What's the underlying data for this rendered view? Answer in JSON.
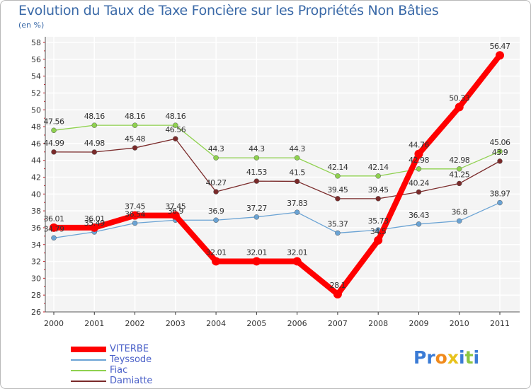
{
  "chart_data": {
    "type": "line",
    "title": "Evolution du Taux de Taxe Foncière sur les Propriétés Non Bâties",
    "subtitle": "(en %)",
    "xlabel": "",
    "ylabel": "",
    "categories": [
      "2000",
      "2001",
      "2002",
      "2003",
      "2004",
      "2005",
      "2006",
      "2007",
      "2008",
      "2009",
      "2010",
      "2011"
    ],
    "ylim": [
      26,
      58
    ],
    "yticks": [
      26,
      28,
      30,
      32,
      34,
      36,
      38,
      40,
      42,
      44,
      46,
      48,
      50,
      52,
      54,
      56,
      58
    ],
    "grid": true,
    "legend_position": "bottom-left",
    "series": [
      {
        "name": "VITERBE",
        "color": "#ff0000",
        "emphasis": true,
        "values": [
          36.01,
          36.01,
          37.45,
          37.45,
          32.01,
          32.01,
          32.01,
          28.1,
          34.5,
          44.76,
          50.33,
          56.47
        ],
        "labels": [
          "36.01",
          "36.01",
          "37.45",
          "37.45",
          "32.01",
          "32.01",
          "32.01",
          "28.1",
          "34.5",
          "44.76",
          "50.33",
          "56.47"
        ]
      },
      {
        "name": "Teyssode",
        "color": "#6aa3d4",
        "emphasis": false,
        "values": [
          34.79,
          35.49,
          36.54,
          36.9,
          36.9,
          37.27,
          37.83,
          35.37,
          35.73,
          36.43,
          36.8,
          38.97
        ],
        "labels": [
          "34.79",
          "35.49",
          "36.54",
          "36.9",
          "36.9",
          "37.27",
          "37.83",
          "35.37",
          "35.73",
          "36.43",
          "36.8",
          "38.97"
        ]
      },
      {
        "name": "Fiac",
        "color": "#8fd14f",
        "emphasis": false,
        "values": [
          47.56,
          48.16,
          48.16,
          48.16,
          44.3,
          44.3,
          44.3,
          42.14,
          42.14,
          42.98,
          42.98,
          45.06
        ],
        "labels": [
          "47.56",
          "48.16",
          "48.16",
          "48.16",
          "44.3",
          "44.3",
          "44.3",
          "42.14",
          "42.14",
          "42.98",
          "42.98",
          "45.06"
        ]
      },
      {
        "name": "Damiatte",
        "color": "#7a2a2a",
        "emphasis": false,
        "values": [
          44.99,
          44.98,
          45.48,
          46.56,
          40.27,
          41.53,
          41.5,
          39.45,
          39.45,
          40.24,
          41.25,
          43.9
        ],
        "labels": [
          "44.99",
          "44.98",
          "45.48",
          "46.56",
          "40.27",
          "41.53",
          "41.5",
          "39.45",
          "39.45",
          "40.24",
          "41.25",
          "43.9"
        ]
      }
    ]
  },
  "logo": {
    "letters": [
      "P",
      "r",
      "o",
      "x",
      "i",
      "t",
      "i"
    ],
    "colors": [
      "#3a7bd5",
      "#3a7bd5",
      "#f08a1c",
      "#e8c21c",
      "#3a7bd5",
      "#8cc63f",
      "#3a7bd5"
    ]
  }
}
